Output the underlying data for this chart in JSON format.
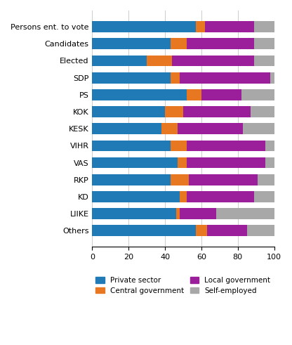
{
  "categories": [
    "Persons ent. to vote",
    "Candidates",
    "Elected",
    "SDP",
    "PS",
    "KOK",
    "KESK",
    "VIHR",
    "VAS",
    "RKP",
    "KD",
    "LIIKE",
    "Others"
  ],
  "private_sector": [
    57,
    43,
    30,
    43,
    52,
    40,
    38,
    43,
    47,
    43,
    48,
    46,
    57
  ],
  "central_government": [
    5,
    9,
    14,
    5,
    8,
    10,
    9,
    9,
    5,
    10,
    4,
    2,
    6
  ],
  "local_government": [
    27,
    37,
    45,
    50,
    22,
    37,
    36,
    43,
    43,
    38,
    37,
    20,
    22
  ],
  "self_employed": [
    11,
    11,
    11,
    2,
    18,
    13,
    17,
    5,
    5,
    9,
    11,
    32,
    15
  ],
  "colors": {
    "private_sector": "#1f7ab5",
    "central_government": "#e87722",
    "local_government": "#9b1e9b",
    "self_employed": "#a8a8a8"
  },
  "legend_labels": [
    "Private sector",
    "Central government",
    "Local government",
    "Self-employed"
  ],
  "xlim": [
    0,
    100
  ],
  "xticks": [
    0,
    20,
    40,
    60,
    80,
    100
  ],
  "figsize": [
    4.16,
    4.91
  ],
  "dpi": 100,
  "bar_height": 0.65
}
